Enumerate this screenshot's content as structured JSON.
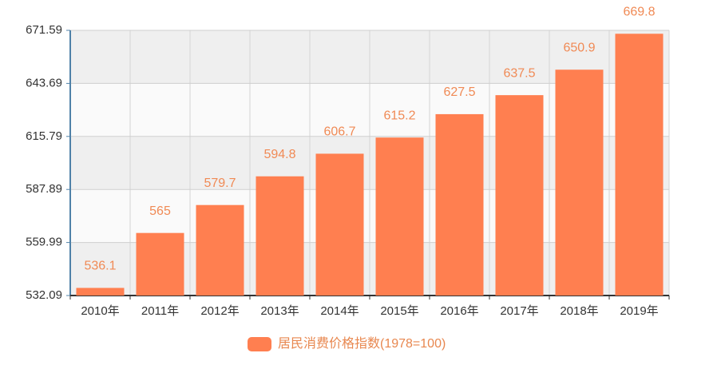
{
  "chart_data": {
    "type": "bar",
    "categories": [
      "2010年",
      "2011年",
      "2012年",
      "2013年",
      "2014年",
      "2015年",
      "2016年",
      "2017年",
      "2018年",
      "2019年"
    ],
    "series": [
      {
        "name": "居民消费价格指数(1978=100)",
        "color": "#ff7f50",
        "values": [
          536.1,
          565,
          579.7,
          594.8,
          606.7,
          615.2,
          627.5,
          637.5,
          650.9,
          669.8
        ]
      }
    ],
    "ylim": [
      532.09,
      671.59
    ],
    "yticks": [
      532.09,
      559.99,
      587.89,
      615.79,
      643.69,
      671.59
    ],
    "grid": true,
    "legend": "bottom"
  }
}
